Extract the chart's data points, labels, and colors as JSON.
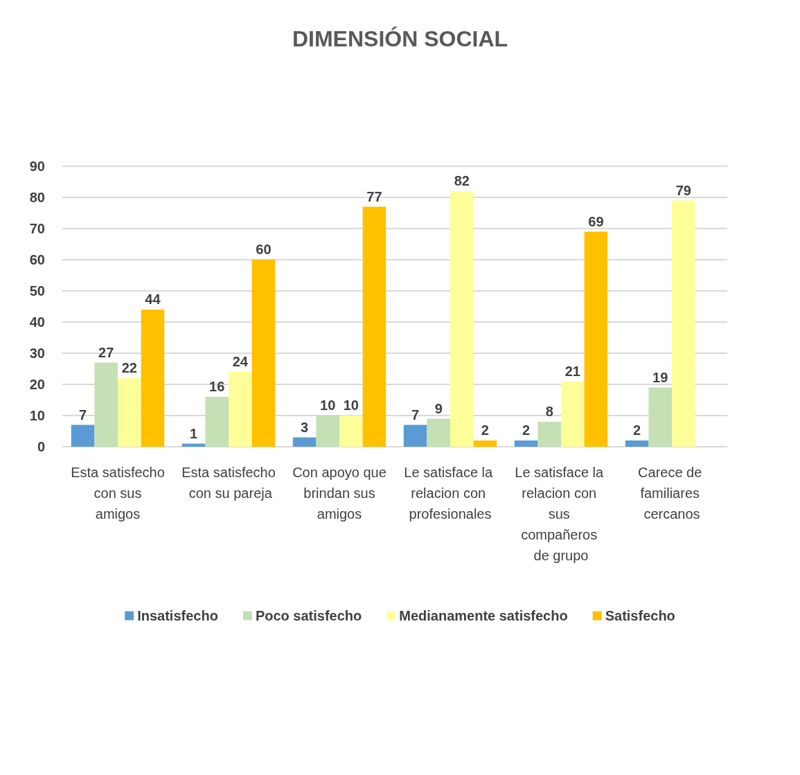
{
  "chart_data": {
    "type": "bar",
    "title": "DIMENSIÓN SOCIAL",
    "categories": [
      "Esta satisfecho con sus amigos",
      "Esta satisfecho con su pareja",
      "Con apoyo que brindan sus amigos",
      "Le satisface la relacion con profesionales",
      "Le satisface la relacion con sus compañeros de grupo",
      "Carece de familiares cercanos"
    ],
    "series": [
      {
        "name": "Insatisfecho",
        "color": "#5b9bd5",
        "values": [
          7,
          1,
          3,
          7,
          2,
          2
        ]
      },
      {
        "name": "Poco satisfecho",
        "color": "#c5e0b4",
        "values": [
          27,
          16,
          10,
          9,
          8,
          19
        ]
      },
      {
        "name": "Medianamente satisfecho",
        "color": "#ffff99",
        "values": [
          22,
          24,
          10,
          82,
          21,
          79
        ]
      },
      {
        "name": "Satisfecho",
        "color": "#ffc000",
        "values": [
          44,
          60,
          77,
          2,
          69,
          null
        ]
      }
    ],
    "ylim": [
      0,
      90
    ],
    "yticks": [
      0,
      10,
      20,
      30,
      40,
      50,
      60,
      70,
      80,
      90
    ],
    "grid": "y",
    "legend": "bottom",
    "data_labels": true
  }
}
